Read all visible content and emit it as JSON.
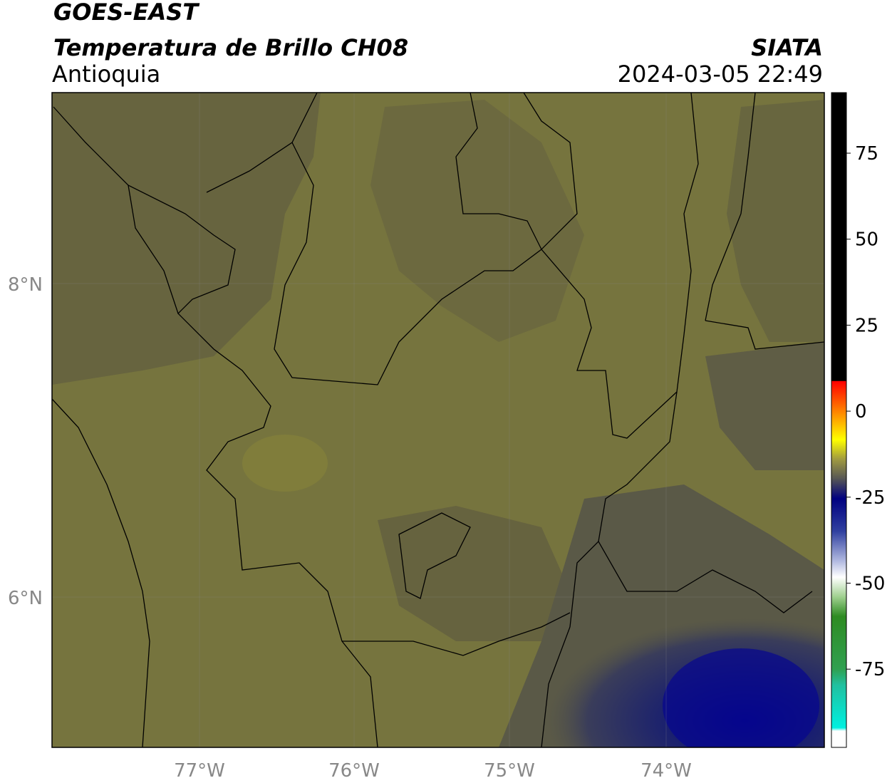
{
  "title": "GOES-EAST",
  "subtitle": "Temperatura de Brillo CH08",
  "region": "Antioquia",
  "source": "SIATA",
  "datetime": "2024-03-05 22:49",
  "map": {
    "lon_labels": [
      "77°W",
      "76°W",
      "75°W",
      "74°W"
    ],
    "lat_labels": [
      "8°N",
      "6°N"
    ]
  },
  "colorbar": {
    "labels": [
      "75",
      "50",
      "25",
      "0",
      "-25",
      "-50",
      "-75"
    ]
  }
}
